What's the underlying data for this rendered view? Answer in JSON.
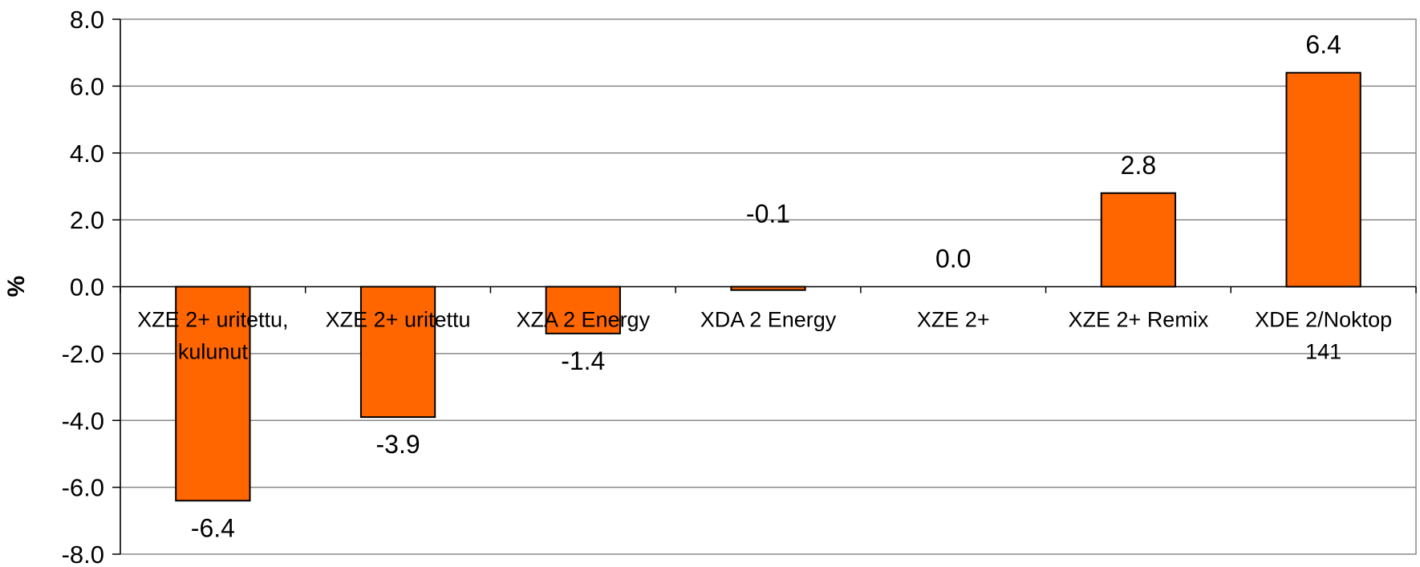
{
  "chart_data": {
    "type": "bar",
    "title": "",
    "xlabel": "",
    "ylabel": "%",
    "ylim": [
      -8.0,
      8.0
    ],
    "ytick_step": 2.0,
    "yticks": [
      "8.0",
      "6.0",
      "4.0",
      "2.0",
      "0.0",
      "-2.0",
      "-4.0",
      "-6.0",
      "-8.0"
    ],
    "grid": true,
    "legend": "none",
    "bar_color": "#FF6600",
    "categories": [
      [
        "XZE 2+ uritettu,",
        "kulunut"
      ],
      [
        "XZE 2+ uritettu"
      ],
      [
        "XZA 2 Energy"
      ],
      [
        "XDA 2 Energy"
      ],
      [
        "XZE 2+"
      ],
      [
        "XZE 2+ Remix"
      ],
      [
        "XDE 2/Noktop",
        "141"
      ]
    ],
    "values": [
      -6.4,
      -3.9,
      -1.4,
      -0.1,
      0.0,
      2.8,
      6.4
    ],
    "value_labels": [
      "-6.4",
      "-3.9",
      "-1.4",
      "-0.1",
      "0.0",
      "2.8",
      "6.4"
    ]
  }
}
